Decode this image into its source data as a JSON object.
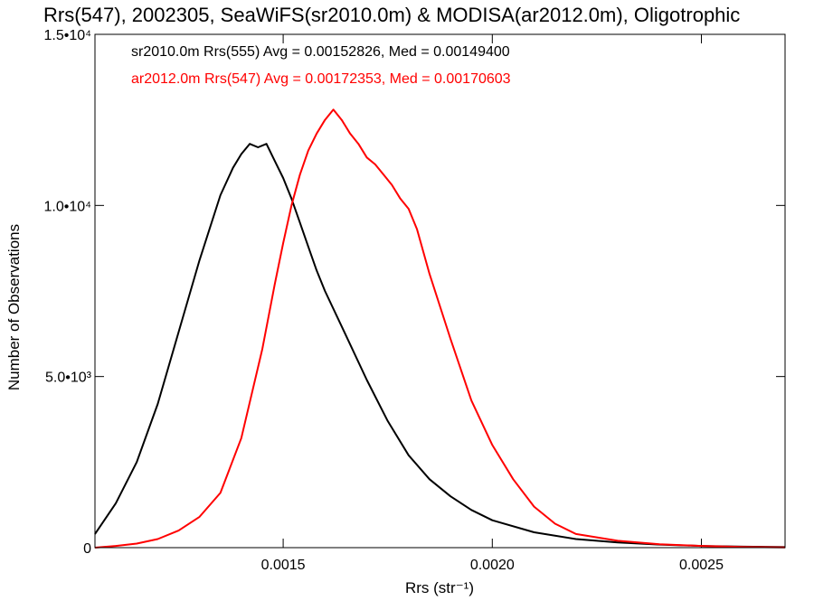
{
  "chart_data": {
    "type": "line",
    "title": "Rrs(547), 2002305, SeaWiFS(sr2010.0m) & MODISA(ar2012.0m), Oligotrophic",
    "xlabel": "Rrs (str⁻¹)",
    "ylabel": "Number of Observations",
    "xlim": [
      0.00105,
      0.0027
    ],
    "ylim": [
      0,
      15000
    ],
    "x_ticks": [
      {
        "value": 0.0015,
        "label": "0.0015"
      },
      {
        "value": 0.002,
        "label": "0.0020"
      },
      {
        "value": 0.0025,
        "label": "0.0025"
      }
    ],
    "y_ticks": [
      {
        "value": 0,
        "label": "0"
      },
      {
        "value": 5000,
        "label": "5.0•10³"
      },
      {
        "value": 10000,
        "label": "1.0•10⁴"
      },
      {
        "value": 15000,
        "label": "1.5•10⁴"
      }
    ],
    "grid": false,
    "legend_position": "top-left",
    "series": [
      {
        "name": "sr2010.0m Rrs(555) Avg = 0.00152826, Med = 0.00149400",
        "color": "#000000",
        "x": [
          0.00105,
          0.0011,
          0.00115,
          0.0012,
          0.00125,
          0.0013,
          0.00135,
          0.00138,
          0.0014,
          0.00142,
          0.00144,
          0.00146,
          0.00148,
          0.0015,
          0.00152,
          0.00154,
          0.00156,
          0.00158,
          0.0016,
          0.00165,
          0.0017,
          0.00175,
          0.0018,
          0.00185,
          0.0019,
          0.00195,
          0.002,
          0.0021,
          0.0022,
          0.0023,
          0.0024,
          0.0025,
          0.0026,
          0.0027
        ],
        "y": [
          400,
          1300,
          2500,
          4200,
          6300,
          8400,
          10300,
          11100,
          11500,
          11800,
          11700,
          11800,
          11300,
          10800,
          10200,
          9500,
          8800,
          8100,
          7500,
          6200,
          4900,
          3700,
          2700,
          2000,
          1500,
          1100,
          800,
          450,
          250,
          150,
          90,
          50,
          30,
          15
        ]
      },
      {
        "name": "ar2012.0m Rrs(547) Avg = 0.00172353, Med = 0.00170603",
        "color": "#ff0000",
        "x": [
          0.00105,
          0.0011,
          0.00115,
          0.0012,
          0.00125,
          0.0013,
          0.00135,
          0.0014,
          0.00145,
          0.00148,
          0.0015,
          0.00152,
          0.00154,
          0.00156,
          0.00158,
          0.0016,
          0.00162,
          0.00164,
          0.00166,
          0.00168,
          0.0017,
          0.00172,
          0.00174,
          0.00176,
          0.00178,
          0.0018,
          0.00182,
          0.00185,
          0.0019,
          0.00195,
          0.002,
          0.00205,
          0.0021,
          0.00215,
          0.0022,
          0.0023,
          0.0024,
          0.0025,
          0.0026,
          0.0027
        ],
        "y": [
          0,
          50,
          120,
          250,
          500,
          900,
          1600,
          3200,
          5800,
          7700,
          8900,
          10000,
          10900,
          11600,
          12100,
          12500,
          12800,
          12500,
          12100,
          11800,
          11400,
          11200,
          10900,
          10600,
          10200,
          9900,
          9300,
          8000,
          6100,
          4300,
          3000,
          2000,
          1200,
          700,
          400,
          200,
          100,
          50,
          20,
          5
        ]
      }
    ]
  }
}
